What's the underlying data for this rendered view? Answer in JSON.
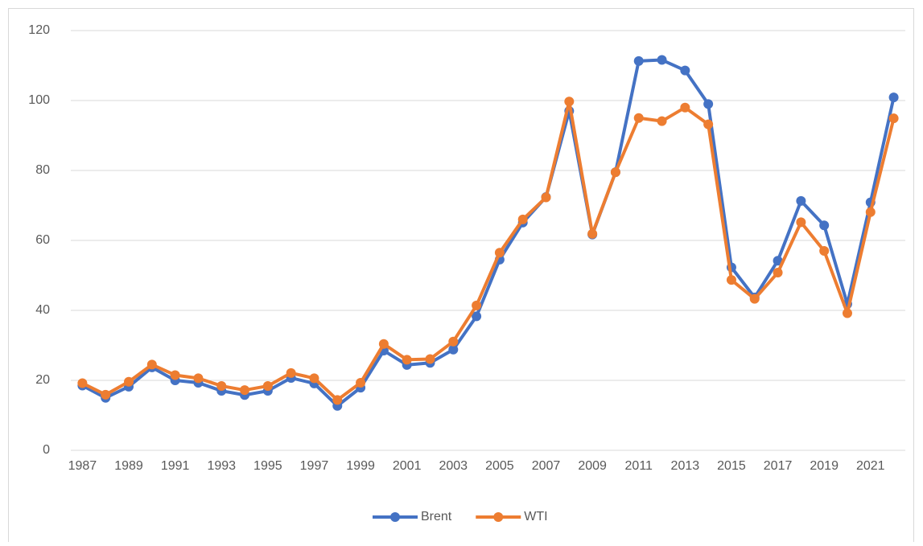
{
  "chart_data": {
    "type": "line",
    "categories": [
      "1987",
      null,
      "1989",
      null,
      "1991",
      null,
      "1993",
      null,
      "1995",
      null,
      "1997",
      null,
      "1999",
      null,
      "2001",
      null,
      "2003",
      null,
      "2005",
      null,
      "2007",
      null,
      "2009",
      null,
      "2011",
      null,
      "2013",
      null,
      "2015",
      null,
      "2017",
      null,
      "2019",
      null,
      "2021",
      null
    ],
    "series": [
      {
        "name": "Brent",
        "color": "#4472c4",
        "values": [
          18.5,
          15,
          18.2,
          23.7,
          20,
          19.3,
          17,
          15.8,
          17,
          20.7,
          19.1,
          12.7,
          17.9,
          28.5,
          24.4,
          25,
          28.8,
          38.3,
          54.5,
          65.1,
          72.4,
          97,
          61.7,
          79.5,
          111.3,
          111.6,
          108.6,
          99,
          52.3,
          43.7,
          54.2,
          71.3,
          64.3,
          41.8,
          70.9,
          100.9
        ]
      },
      {
        "name": "WTI",
        "color": "#ed7d31",
        "values": [
          19.2,
          15.9,
          19.6,
          24.5,
          21.5,
          20.6,
          18.4,
          17.2,
          18.4,
          22.1,
          20.6,
          14.4,
          19.3,
          30.4,
          25.9,
          26.1,
          31.1,
          41.4,
          56.5,
          66,
          72.3,
          99.7,
          61.9,
          79.5,
          95,
          94.1,
          98,
          93.2,
          48.7,
          43.3,
          50.8,
          65.2,
          57,
          39.2,
          68.1,
          94.9
        ]
      }
    ],
    "ylim": [
      0,
      120
    ],
    "yticks": [
      0,
      20,
      40,
      60,
      80,
      100,
      120
    ],
    "grid": true,
    "legend": "bottom"
  }
}
